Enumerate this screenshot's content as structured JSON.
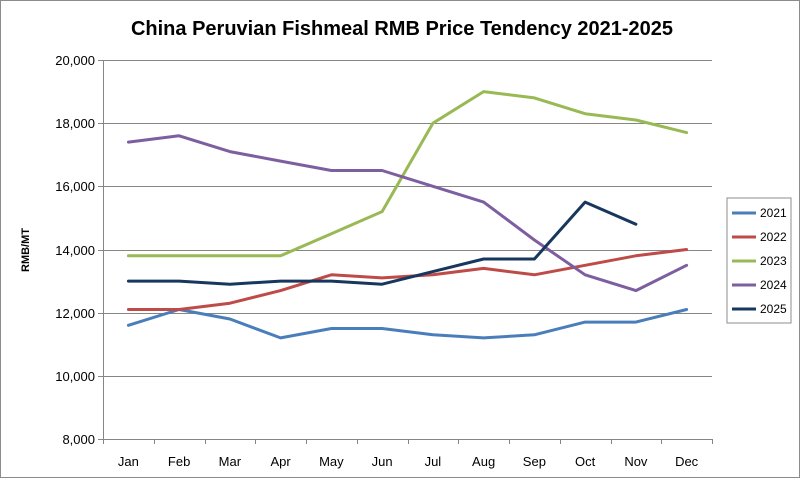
{
  "chart_data": {
    "type": "line",
    "title": "China Peruvian Fishmeal RMB Price Tendency 2021-2025",
    "xlabel": "",
    "ylabel": "RMB/MT",
    "categories": [
      "Jan",
      "Feb",
      "Mar",
      "Apr",
      "May",
      "Jun",
      "Jul",
      "Aug",
      "Sep",
      "Oct",
      "Nov",
      "Dec"
    ],
    "ylim": [
      8000,
      20000
    ],
    "yticks": [
      8000,
      10000,
      12000,
      14000,
      16000,
      18000,
      20000
    ],
    "ytick_labels": [
      "8,000",
      "10,000",
      "12,000",
      "14,000",
      "16,000",
      "18,000",
      "20,000"
    ],
    "grid": "horizontal",
    "legend_position": "right",
    "series": [
      {
        "name": "2021",
        "color": "#4a7ebb",
        "values": [
          11600,
          12100,
          11800,
          11200,
          11500,
          11500,
          11300,
          11200,
          11300,
          11700,
          11700,
          12100
        ]
      },
      {
        "name": "2022",
        "color": "#be4b48",
        "values": [
          12100,
          12100,
          12300,
          12700,
          13200,
          13100,
          13200,
          13400,
          13200,
          13500,
          13800,
          14000
        ]
      },
      {
        "name": "2023",
        "color": "#98b954",
        "values": [
          13800,
          13800,
          13800,
          13800,
          14500,
          15200,
          18000,
          19000,
          18800,
          18300,
          18100,
          17700
        ]
      },
      {
        "name": "2024",
        "color": "#7d5fa0",
        "values": [
          17400,
          17600,
          17100,
          16800,
          16500,
          16500,
          16000,
          15500,
          14300,
          13200,
          12700,
          13500
        ]
      },
      {
        "name": "2025",
        "color": "#17375e",
        "values": [
          13000,
          13000,
          12900,
          13000,
          13000,
          12900,
          13300,
          13700,
          13700,
          15500,
          14800,
          null
        ]
      }
    ]
  }
}
